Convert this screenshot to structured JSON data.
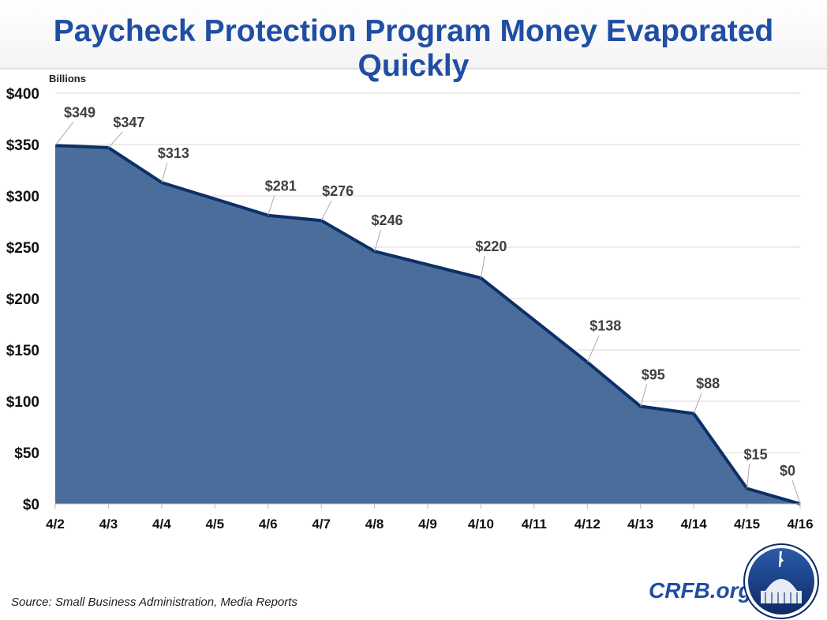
{
  "title": "Paycheck Protection Program Money Evaporated Quickly",
  "source": "Source: Small Business Administration, Media Reports",
  "brand": "CRFB.org",
  "colors": {
    "title": "#1f4ea3",
    "fill": "#4a6d9c",
    "line": "#0c2f66"
  },
  "chart_data": {
    "type": "area",
    "title": "Paycheck Protection Program Money Evaporated Quickly",
    "ylabel": "Billions",
    "ylim": [
      0,
      400
    ],
    "yticks": [
      0,
      50,
      100,
      150,
      200,
      250,
      300,
      350,
      400
    ],
    "ytick_labels": [
      "$0",
      "$50",
      "$100",
      "$150",
      "$200",
      "$250",
      "$300",
      "$350",
      "$400"
    ],
    "grid": true,
    "categories": [
      "4/2",
      "4/3",
      "4/4",
      "4/5",
      "4/6",
      "4/7",
      "4/8",
      "4/9",
      "4/10",
      "4/11",
      "4/12",
      "4/13",
      "4/14",
      "4/15",
      "4/16"
    ],
    "values": [
      349,
      347,
      313,
      null,
      281,
      276,
      246,
      null,
      220,
      null,
      138,
      95,
      88,
      15,
      0
    ],
    "data_labels": [
      "$349",
      "$347",
      "$313",
      "",
      "$281",
      "$276",
      "$246",
      "",
      "$220",
      "",
      "$138",
      "$95",
      "$88",
      "$15",
      "$0"
    ]
  }
}
